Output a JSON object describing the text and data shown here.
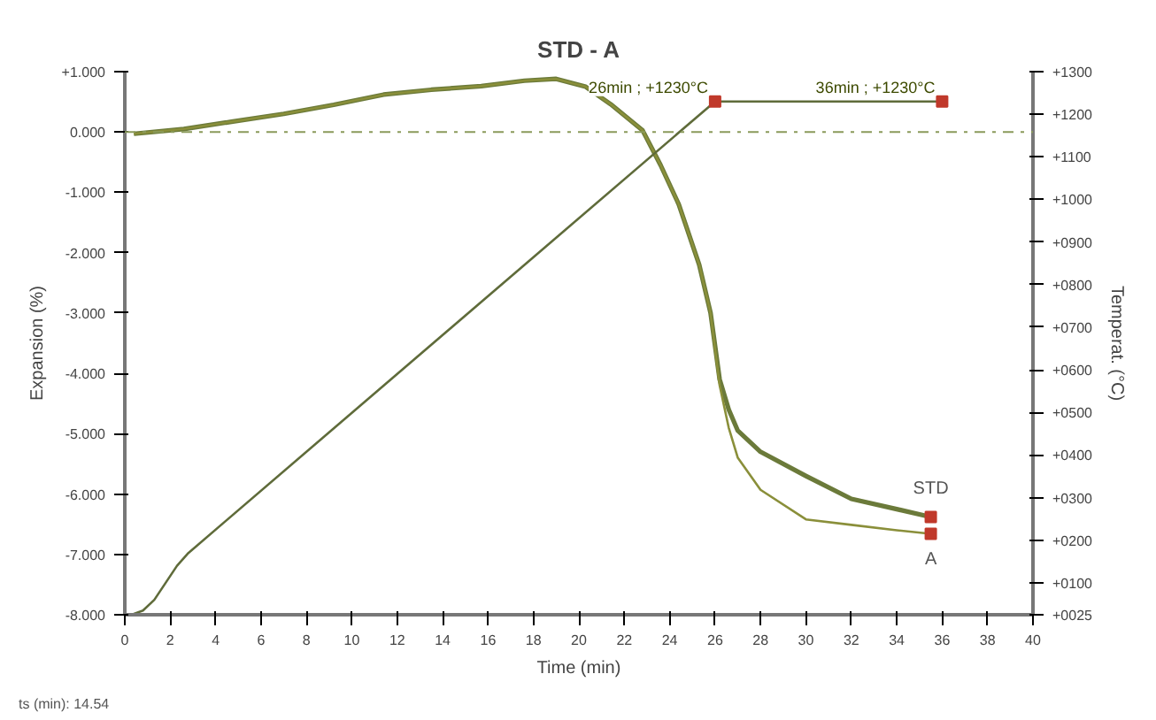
{
  "chart_data": {
    "type": "line",
    "title": "STD - A",
    "xlabel": "Time (min)",
    "ylabel": "Expansion (%)",
    "y2label": "Temperat. (°C)",
    "xlim": [
      0,
      40
    ],
    "xticks": [
      0,
      2,
      4,
      6,
      8,
      10,
      12,
      14,
      16,
      18,
      20,
      22,
      24,
      26,
      28,
      30,
      32,
      34,
      36,
      38,
      40
    ],
    "ylim": [
      -8,
      1
    ],
    "yticks": [
      {
        "value": 1,
        "label": "+1.000"
      },
      {
        "value": 0,
        "label": "0.000"
      },
      {
        "value": -1,
        "label": "-1.000"
      },
      {
        "value": -2,
        "label": "-2.000"
      },
      {
        "value": -3,
        "label": "-3.000"
      },
      {
        "value": -4,
        "label": "-4.000"
      },
      {
        "value": -5,
        "label": "-5.000"
      },
      {
        "value": -6,
        "label": "-6.000"
      },
      {
        "value": -7,
        "label": "-7.000"
      },
      {
        "value": -8,
        "label": "-8.000"
      }
    ],
    "y2lim": [
      25,
      1300
    ],
    "y2ticks": [
      {
        "value": 1300,
        "label": "+1300"
      },
      {
        "value": 1200,
        "label": "+1200"
      },
      {
        "value": 1100,
        "label": "+1100"
      },
      {
        "value": 1000,
        "label": "+1000"
      },
      {
        "value": 900,
        "label": "+0900"
      },
      {
        "value": 800,
        "label": "+0800"
      },
      {
        "value": 700,
        "label": "+0700"
      },
      {
        "value": 600,
        "label": "+0600"
      },
      {
        "value": 500,
        "label": "+0500"
      },
      {
        "value": 400,
        "label": "+0400"
      },
      {
        "value": 300,
        "label": "+0300"
      },
      {
        "value": 200,
        "label": "+0200"
      },
      {
        "value": 100,
        "label": "+0100"
      },
      {
        "value": 25,
        "label": "+0025"
      }
    ],
    "grid": false,
    "series": [
      {
        "name": "STD",
        "color": "#6b7a3a",
        "x": [
          0.4,
          2.6,
          4.7,
          7,
          9.2,
          11.4,
          13.5,
          15.7,
          17.6,
          19,
          20.3,
          21.4,
          22.8,
          23.6,
          24.4,
          25.3,
          25.8,
          26.2,
          26.6,
          27,
          28,
          30,
          32,
          34,
          35.5
        ],
        "values": [
          -0.03,
          0.05,
          0.17,
          0.3,
          0.45,
          0.62,
          0.7,
          0.76,
          0.85,
          0.88,
          0.75,
          0.46,
          0.03,
          -0.55,
          -1.2,
          -2.2,
          -3.0,
          -4.1,
          -4.6,
          -4.95,
          -5.3,
          -5.7,
          -6.08,
          -6.25,
          -6.38
        ]
      },
      {
        "name": "A",
        "color": "#8a8f3a",
        "x": [
          0.4,
          2.6,
          4.7,
          7,
          9.2,
          11.4,
          13.5,
          15.7,
          17.6,
          19,
          20.3,
          21.4,
          22.8,
          23.6,
          24.4,
          25.3,
          25.8,
          26.2,
          26.6,
          27,
          28,
          30,
          32,
          34,
          35.5
        ],
        "values": [
          -0.03,
          0.05,
          0.17,
          0.3,
          0.45,
          0.62,
          0.7,
          0.76,
          0.85,
          0.88,
          0.75,
          0.46,
          0.03,
          -0.55,
          -1.2,
          -2.2,
          -3.0,
          -4.2,
          -4.9,
          -5.4,
          -5.93,
          -6.42,
          -6.51,
          -6.6,
          -6.66
        ]
      },
      {
        "color": "#5f6b3a",
        "axis": "y2",
        "x": [
          0.3,
          0.8,
          1.3,
          1.8,
          2.3,
          2.8,
          26,
          36
        ],
        "values": [
          25,
          35,
          60,
          100,
          140,
          170,
          1230,
          1230
        ]
      },
      {
        "type": "scatter",
        "marker": "square",
        "color": "#c0392b",
        "x": [
          35.5,
          35.5
        ],
        "values": [
          -6.38,
          -6.66
        ]
      },
      {
        "type": "scatter",
        "marker": "square",
        "color": "#c0392b",
        "axis": "y2",
        "x": [
          26,
          36
        ],
        "values": [
          1230,
          1230
        ]
      }
    ],
    "ref_lines": [
      {
        "axis": "y",
        "value": 0,
        "color": "#8a9a5b",
        "line_style": "dashdot"
      }
    ],
    "annotations": [
      "26min ; +1230°C",
      "36min ; +1230°C",
      "ts (min): 14.54"
    ]
  }
}
